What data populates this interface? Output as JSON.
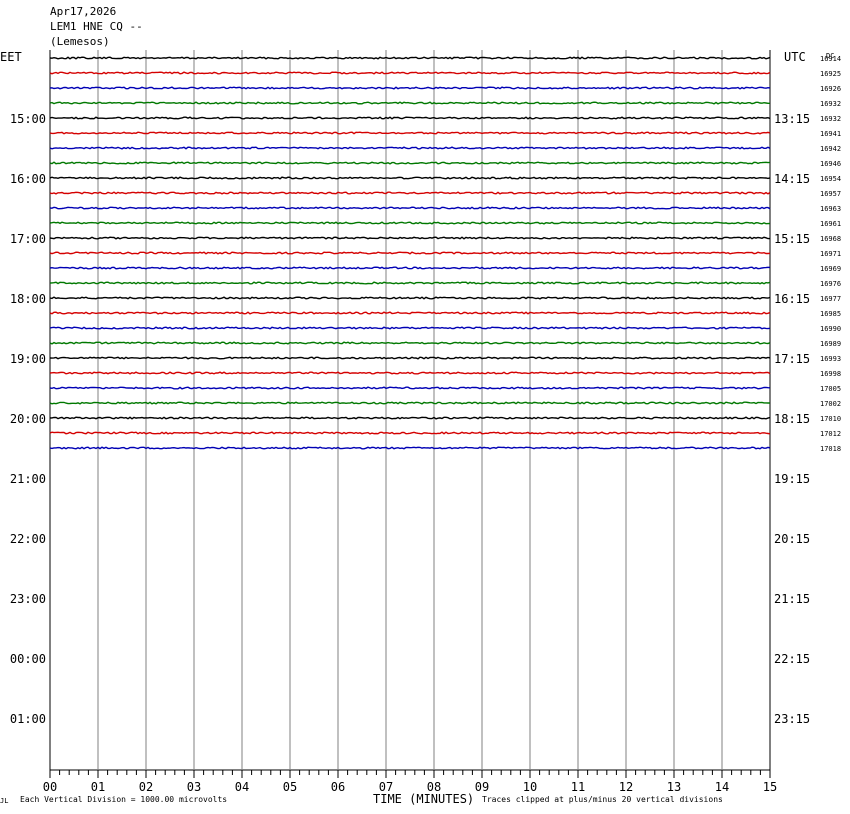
{
  "header": {
    "date": "Apr17,2026",
    "station": "LEM1 HNE CQ --",
    "location": "(Lemesos)"
  },
  "left_axis_label": "EET",
  "right_axis_label": "UTC",
  "dc_label": "DC",
  "chart_data": {
    "type": "line",
    "title": "LEM1 HNE CQ --",
    "xlabel": "TIME (MINUTES)",
    "xlim": [
      0,
      15
    ],
    "x_ticks": [
      "00",
      "01",
      "02",
      "03",
      "04",
      "05",
      "06",
      "07",
      "08",
      "09",
      "10",
      "11",
      "12",
      "13",
      "14",
      "15"
    ],
    "left_hour_labels": [
      "15:00",
      "16:00",
      "17:00",
      "18:00",
      "19:00",
      "20:00",
      "21:00",
      "22:00",
      "23:00",
      "00:00",
      "01:00"
    ],
    "right_hour_labels": [
      "13:15",
      "14:15",
      "15:15",
      "16:15",
      "17:15",
      "18:15",
      "19:15",
      "20:15",
      "21:15",
      "22:15",
      "23:15"
    ],
    "trace_colors": [
      "#000000",
      "#d40000",
      "#0000b4",
      "#007800"
    ],
    "traces_drawn": 27,
    "dc_offsets": [
      "16914",
      "16925",
      "16926",
      "16932",
      "16932",
      "16941",
      "16942",
      "16946",
      "16954",
      "16957",
      "16963",
      "16961",
      "16968",
      "16971",
      "16969",
      "16976",
      "16977",
      "16985",
      "16990",
      "16989",
      "16993",
      "16998",
      "17005",
      "17002",
      "17010",
      "17012",
      "17018"
    ]
  },
  "footer": {
    "corner_mark": "JL",
    "scale_note": "Each Vertical Division = 1000.00 microvolts",
    "time_label": "TIME (MINUTES)",
    "clip_note": "Traces clipped at plus/minus 20 vertical divisions"
  }
}
